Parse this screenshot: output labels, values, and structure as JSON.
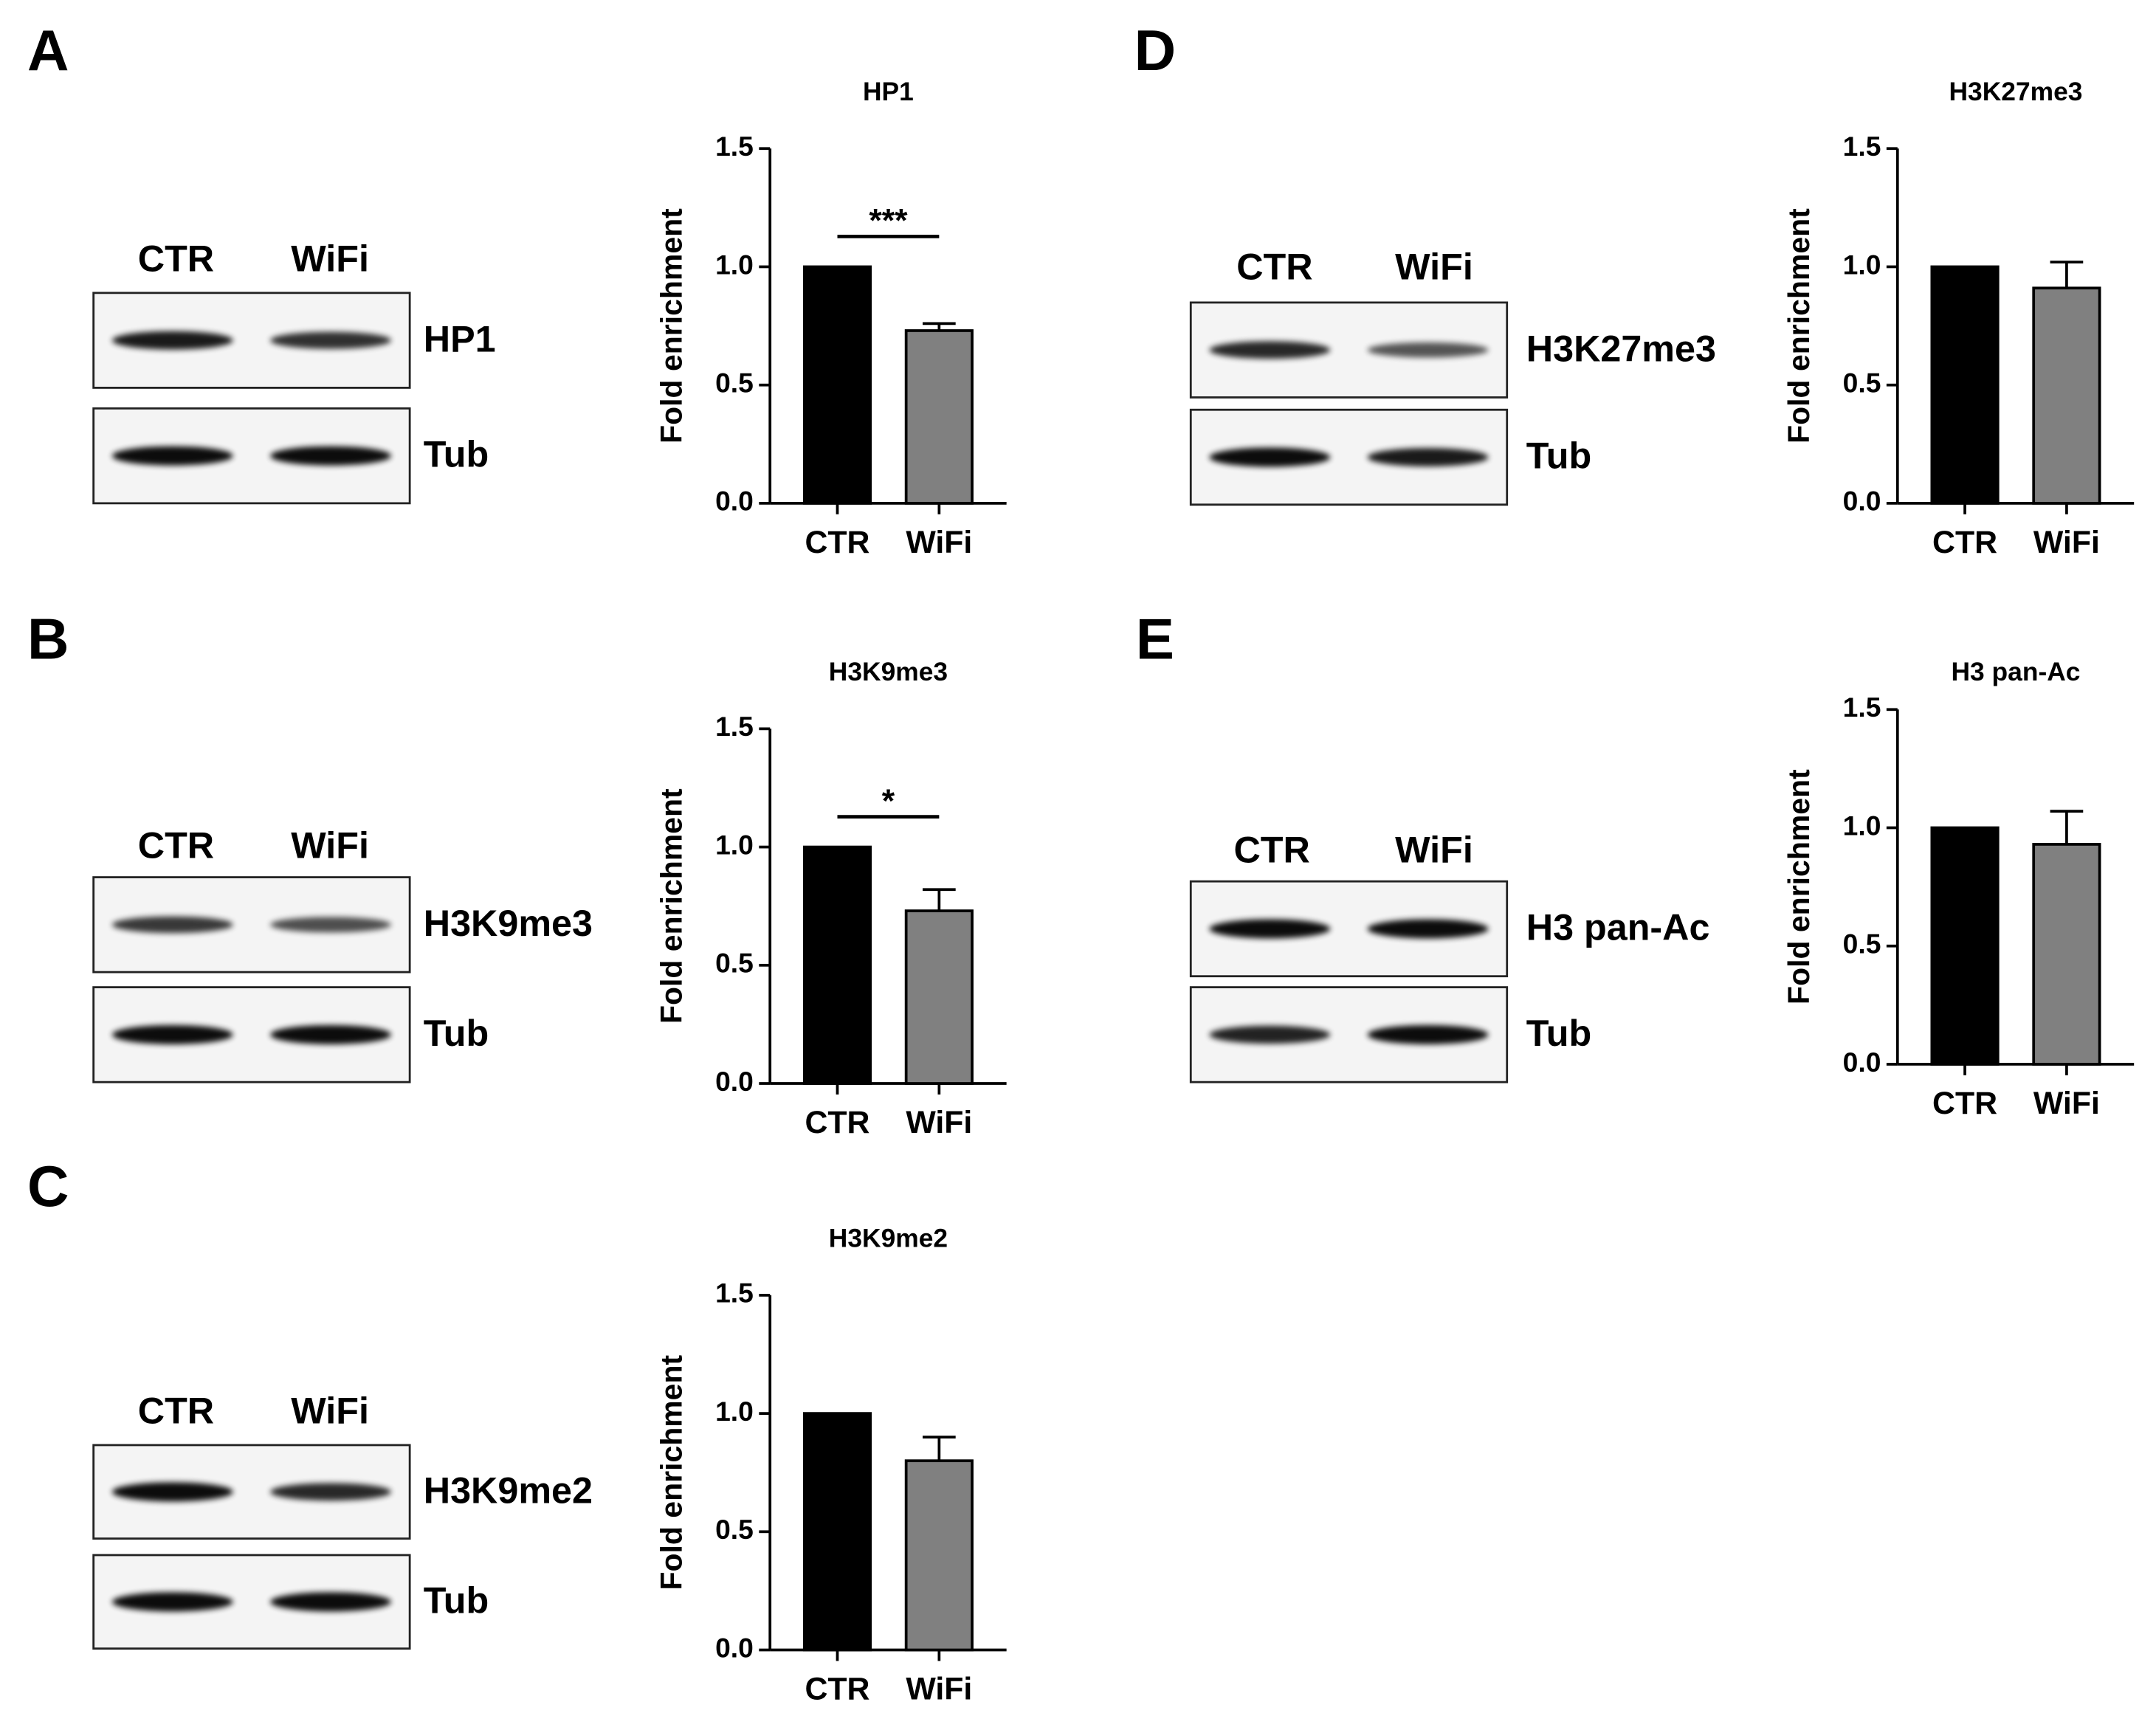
{
  "panels": [
    {
      "letter": "A",
      "lanes": [
        "CTR",
        "WiFi"
      ],
      "bands": [
        "HP1",
        "Tub"
      ]
    },
    {
      "letter": "B",
      "lanes": [
        "CTR",
        "WiFi"
      ],
      "bands": [
        "H3K9me3",
        "Tub"
      ]
    },
    {
      "letter": "C",
      "lanes": [
        "CTR",
        "WiFi"
      ],
      "bands": [
        "H3K9me2",
        "Tub"
      ]
    },
    {
      "letter": "D",
      "lanes": [
        "CTR",
        "WiFi"
      ],
      "bands": [
        "H3K27me3",
        "Tub"
      ]
    },
    {
      "letter": "E",
      "lanes": [
        "CTR",
        "WiFi"
      ],
      "bands": [
        "H3 pan-Ac",
        "Tub"
      ]
    }
  ],
  "chart_data": [
    {
      "type": "bar",
      "title": "HP1",
      "ylabel": "Fold enrichment",
      "categories": [
        "CTR",
        "WiFi"
      ],
      "values": [
        1.0,
        0.73
      ],
      "errors": [
        null,
        0.03
      ],
      "colors": [
        "#000000",
        "#808080"
      ],
      "annotation": "***",
      "ylim": [
        0,
        1.5
      ],
      "yticks": [
        {
          "value": 0,
          "label": "0.0"
        },
        {
          "value": 0.5,
          "label": "0.5"
        },
        {
          "value": 1,
          "label": "1.0"
        },
        {
          "value": 1.5,
          "label": "1.5"
        }
      ]
    },
    {
      "type": "bar",
      "title": "H3K9me3",
      "ylabel": "Fold enrichment",
      "categories": [
        "CTR",
        "WiFi"
      ],
      "values": [
        1.0,
        0.73
      ],
      "errors": [
        null,
        0.09
      ],
      "colors": [
        "#000000",
        "#808080"
      ],
      "annotation": "*",
      "ylim": [
        0,
        1.5
      ],
      "yticks": [
        {
          "value": 0,
          "label": "0.0"
        },
        {
          "value": 0.5,
          "label": "0.5"
        },
        {
          "value": 1,
          "label": "1.0"
        },
        {
          "value": 1.5,
          "label": "1.5"
        }
      ]
    },
    {
      "type": "bar",
      "title": "H3K9me2",
      "ylabel": "Fold enrichment",
      "categories": [
        "CTR",
        "WiFi"
      ],
      "values": [
        1.0,
        0.8
      ],
      "errors": [
        null,
        0.1
      ],
      "colors": [
        "#000000",
        "#808080"
      ],
      "ylim": [
        0,
        1.5
      ],
      "yticks": [
        {
          "value": 0,
          "label": "0.0"
        },
        {
          "value": 0.5,
          "label": "0.5"
        },
        {
          "value": 1,
          "label": "1.0"
        },
        {
          "value": 1.5,
          "label": "1.5"
        }
      ]
    },
    {
      "type": "bar",
      "title": "H3K27me3",
      "ylabel": "Fold enrichment",
      "categories": [
        "CTR",
        "WiFi"
      ],
      "values": [
        1.0,
        0.91
      ],
      "errors": [
        null,
        0.11
      ],
      "colors": [
        "#000000",
        "#808080"
      ],
      "ylim": [
        0,
        1.5
      ],
      "yticks": [
        {
          "value": 0,
          "label": "0.0"
        },
        {
          "value": 0.5,
          "label": "0.5"
        },
        {
          "value": 1,
          "label": "1.0"
        },
        {
          "value": 1.5,
          "label": "1.5"
        }
      ]
    },
    {
      "type": "bar",
      "title": "H3 pan-Ac",
      "ylabel": "Fold enrichment",
      "categories": [
        "CTR",
        "WiFi"
      ],
      "values": [
        1.0,
        0.93
      ],
      "errors": [
        null,
        0.14
      ],
      "colors": [
        "#000000",
        "#808080"
      ],
      "ylim": [
        0,
        1.5
      ],
      "yticks": [
        {
          "value": 0,
          "label": "0.0"
        },
        {
          "value": 0.5,
          "label": "0.5"
        },
        {
          "value": 1,
          "label": "1.0"
        },
        {
          "value": 1.5,
          "label": "1.5"
        }
      ]
    }
  ]
}
